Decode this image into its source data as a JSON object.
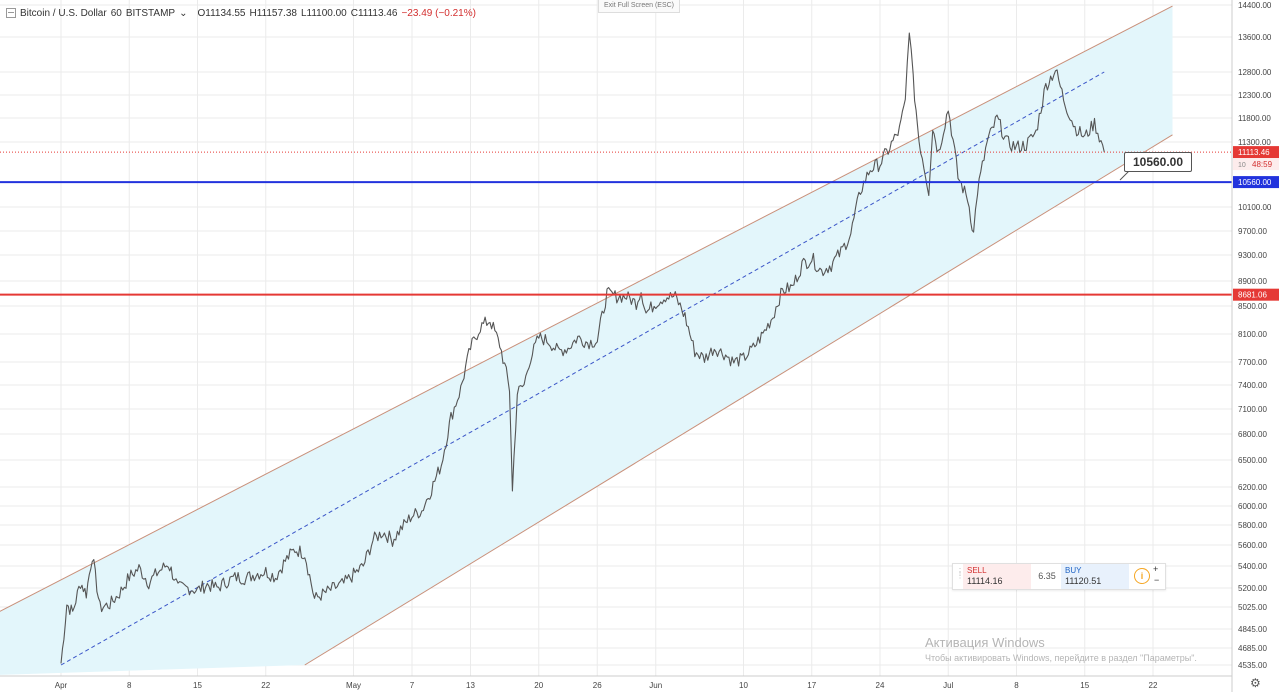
{
  "header": {
    "symbol": "Bitcoin / U.S. Dollar",
    "interval": "60",
    "exchange": "BITSTAMP",
    "menu_glyph": "⌄",
    "open": "O11134.55",
    "high": "H11157.38",
    "low": "L11100.00",
    "close": "C11113.46",
    "change": "−23.49 (−0.21%)"
  },
  "exit_fullscreen_label": "Exit Full Screen (ESC)",
  "chart_data": {
    "type": "line",
    "price_scale": {
      "min": 4535,
      "max": 14400,
      "ticks": [
        14400,
        13600,
        12800,
        12300,
        11800,
        11300,
        10100,
        9700,
        9300,
        8900,
        8500,
        8100,
        7700,
        7400,
        7100,
        6800,
        6500,
        6200,
        6000,
        5800,
        5600,
        5400,
        5200,
        5025,
        4845,
        4685,
        4535
      ],
      "tick_labels": [
        "14400.00",
        "13600.00",
        "12800.00",
        "12300.00",
        "11800.00",
        "11300.00",
        "10100.00",
        "9700.00",
        "9300.00",
        "8900.00",
        "8500.00",
        "8100.00",
        "7700.00",
        "7400.00",
        "7100.00",
        "6800.00",
        "6500.00",
        "6200.00",
        "6000.00",
        "5800.00",
        "5600.00",
        "5400.00",
        "5200.00",
        "5025.00",
        "4845.00",
        "4685.00",
        "4535.00"
      ]
    },
    "time_axis": {
      "labels": [
        "Apr",
        "8",
        "15",
        "22",
        "May",
        "7",
        "13",
        "20",
        "26",
        "Jun",
        "10",
        "17",
        "24",
        "Jul",
        "8",
        "15",
        "22"
      ],
      "day_offsets": [
        0,
        7,
        14,
        21,
        30,
        36,
        42,
        49,
        55,
        61,
        70,
        77,
        84,
        91,
        98,
        105,
        112
      ]
    },
    "series": [
      {
        "values": [
          [
            0,
            4550
          ],
          [
            0.6,
            5050
          ],
          [
            1.2,
            4980
          ],
          [
            2,
            5250
          ],
          [
            2.6,
            5150
          ],
          [
            3.2,
            5500
          ],
          [
            4,
            5020
          ],
          [
            5,
            5050
          ],
          [
            6,
            5150
          ],
          [
            7,
            5300
          ],
          [
            8,
            5380
          ],
          [
            9,
            5250
          ],
          [
            10,
            5350
          ],
          [
            11,
            5420
          ],
          [
            11.6,
            5300
          ],
          [
            12,
            5200
          ],
          [
            13,
            5200
          ],
          [
            14,
            5180
          ],
          [
            15,
            5230
          ],
          [
            16,
            5200
          ],
          [
            17,
            5260
          ],
          [
            18,
            5300
          ],
          [
            19,
            5290
          ],
          [
            20,
            5330
          ],
          [
            21,
            5350
          ],
          [
            22,
            5300
          ],
          [
            23,
            5450
          ],
          [
            24,
            5560
          ],
          [
            25,
            5520
          ],
          [
            26,
            5100
          ],
          [
            27,
            5150
          ],
          [
            28,
            5200
          ],
          [
            29,
            5240
          ],
          [
            30,
            5320
          ],
          [
            31,
            5400
          ],
          [
            32,
            5650
          ],
          [
            33,
            5730
          ],
          [
            34,
            5650
          ],
          [
            35,
            5780
          ],
          [
            36,
            5900
          ],
          [
            37,
            5950
          ],
          [
            38,
            6180
          ],
          [
            39,
            6450
          ],
          [
            40,
            7000
          ],
          [
            41,
            7350
          ],
          [
            42,
            7900
          ],
          [
            43,
            8200
          ],
          [
            44,
            8300
          ],
          [
            45,
            7950
          ],
          [
            46,
            7350
          ],
          [
            46.3,
            6150
          ],
          [
            46.8,
            7300
          ],
          [
            47.5,
            7400
          ],
          [
            48,
            7700
          ],
          [
            49,
            8050
          ],
          [
            50,
            8000
          ],
          [
            51,
            7850
          ],
          [
            52,
            7900
          ],
          [
            53,
            8050
          ],
          [
            54,
            7980
          ],
          [
            55,
            8000
          ],
          [
            56,
            8700
          ],
          [
            57,
            8650
          ],
          [
            58,
            8650
          ],
          [
            59,
            8550
          ],
          [
            59.5,
            8750
          ],
          [
            60,
            8400
          ],
          [
            61,
            8550
          ],
          [
            62,
            8650
          ],
          [
            63,
            8650
          ],
          [
            64,
            8350
          ],
          [
            65,
            7850
          ],
          [
            66,
            7750
          ],
          [
            67,
            7900
          ],
          [
            68,
            7820
          ],
          [
            69,
            7700
          ],
          [
            70,
            7750
          ],
          [
            71,
            7900
          ],
          [
            72,
            8100
          ],
          [
            73,
            8350
          ],
          [
            74,
            8750
          ],
          [
            75,
            8800
          ],
          [
            76,
            9150
          ],
          [
            77,
            9250
          ],
          [
            78,
            9050
          ],
          [
            79,
            9150
          ],
          [
            80,
            9350
          ],
          [
            81,
            9650
          ],
          [
            82,
            10400
          ],
          [
            83,
            10800
          ],
          [
            84,
            10900
          ],
          [
            85,
            11200
          ],
          [
            86,
            11550
          ],
          [
            86.6,
            12150
          ],
          [
            87,
            13850
          ],
          [
            87.4,
            12600
          ],
          [
            88,
            11350
          ],
          [
            89,
            10400
          ],
          [
            89.4,
            11600
          ],
          [
            90,
            11100
          ],
          [
            91,
            12000
          ],
          [
            92,
            10650
          ],
          [
            93,
            10250
          ],
          [
            93.6,
            9650
          ],
          [
            94,
            10400
          ],
          [
            95,
            11300
          ],
          [
            96,
            11800
          ],
          [
            97,
            11300
          ],
          [
            98,
            11200
          ],
          [
            99,
            11250
          ],
          [
            100,
            11500
          ],
          [
            101,
            12500
          ],
          [
            102,
            12850
          ],
          [
            103,
            12100
          ],
          [
            104,
            11600
          ],
          [
            105,
            11400
          ],
          [
            106,
            11700
          ],
          [
            107,
            11113
          ]
        ]
      }
    ],
    "channel": {
      "upper": [
        [
          -10,
          4835
        ],
        [
          80,
          12400
        ],
        [
          115,
          14450
        ]
      ],
      "mid": [
        [
          0,
          4535
        ],
        [
          107,
          12800
        ]
      ],
      "lower": [
        [
          25,
          4535
        ],
        [
          114,
          11450
        ]
      ]
    },
    "horizontal_lines": [
      {
        "price": 10560,
        "label": "10560.00",
        "color": "#2233dd"
      },
      {
        "price": 8681.06,
        "label": "8681.06",
        "color": "#e53935"
      }
    ],
    "last_price": {
      "price": 11113.46,
      "label": "11113.46",
      "countdown": "48:59",
      "countdown_prefix": "10",
      "color": "#e53935"
    },
    "callout": {
      "label": "10560.00"
    },
    "colors": {
      "candles": "#555555",
      "channel_fill": "#e3f6fb",
      "channel_lines": "#c9907a",
      "midline": "#3a55c8",
      "grid": "#ebebeb"
    }
  },
  "trade_widget": {
    "sell_label": "SELL",
    "sell_price": "11114.16",
    "spread": "6.35",
    "buy_label": "BUY",
    "buy_price": "11120.51",
    "info_icon": "i",
    "plus": "+",
    "minus": "−"
  },
  "watermark": {
    "line1": "Активация Windows",
    "line2": "Чтобы активировать Windows, перейдите в раздел \"Параметры\"."
  },
  "settings_icon": "⚙"
}
